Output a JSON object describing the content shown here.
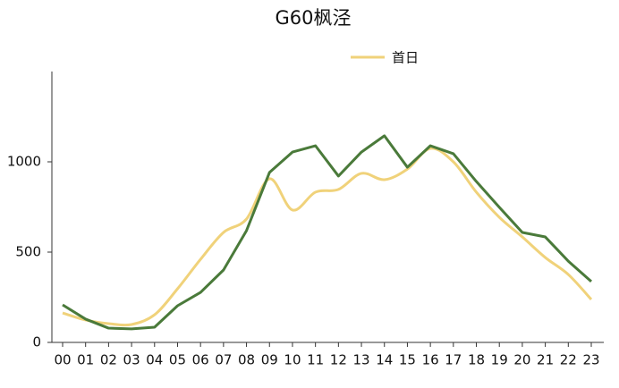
{
  "chart_data": {
    "type": "line",
    "title": "G60枫泾",
    "categories": [
      "00",
      "01",
      "02",
      "03",
      "04",
      "05",
      "06",
      "07",
      "08",
      "09",
      "10",
      "11",
      "12",
      "13",
      "14",
      "15",
      "16",
      "17",
      "18",
      "19",
      "20",
      "21",
      "22",
      "23"
    ],
    "series": [
      {
        "name": "首日",
        "color": "#f0d27a",
        "smooth": true,
        "values": [
          163,
          124,
          104,
          99,
          153,
          297,
          460,
          609,
          683,
          906,
          733,
          832,
          847,
          936,
          901,
          960,
          1074,
          1000,
          832,
          693,
          584,
          470,
          376,
          238
        ]
      },
      {
        "color": "#4a7a3a",
        "smooth": false,
        "values": [
          208,
          129,
          79,
          75,
          84,
          203,
          277,
          401,
          619,
          941,
          1054,
          1089,
          921,
          1054,
          1144,
          970,
          1089,
          1045,
          891,
          748,
          609,
          584,
          450,
          337
        ]
      }
    ],
    "ylim": [
      0,
      1500
    ],
    "yticks": [
      0,
      500,
      1000
    ],
    "grid": false,
    "legend": "top"
  }
}
